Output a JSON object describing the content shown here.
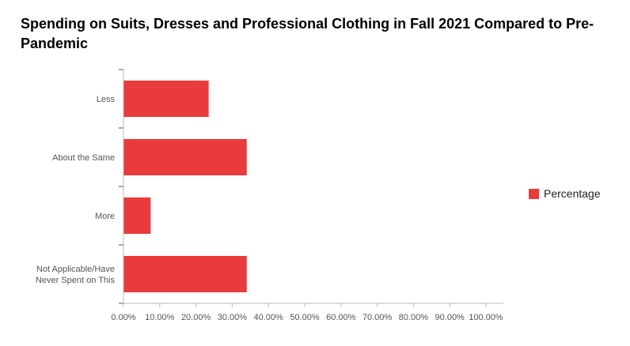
{
  "chart_data": {
    "type": "bar",
    "orientation": "horizontal",
    "title": "Spending on Suits, Dresses and Professional Clothing in Fall 2021 Compared to Pre-Pandemic",
    "categories": [
      "Less",
      "About the Same",
      "More",
      "Not Applicable/Have Never Spent on This"
    ],
    "category_lines": [
      [
        "Less"
      ],
      [
        "About the Same"
      ],
      [
        "More"
      ],
      [
        "Not Applicable/Have",
        "Never Spent on This"
      ]
    ],
    "series": [
      {
        "name": "Percentage",
        "values": [
          23.5,
          34.0,
          7.5,
          34.0
        ]
      }
    ],
    "xlim": [
      0,
      100
    ],
    "x_ticks": [
      0,
      10,
      20,
      30,
      40,
      50,
      60,
      70,
      80,
      90,
      100
    ],
    "x_tick_labels": [
      "0.00%",
      "10.00%",
      "20.00%",
      "30.00%",
      "40.00%",
      "50.00%",
      "60.00%",
      "70.00%",
      "80.00%",
      "90.00%",
      "100.00%"
    ],
    "legend_position": "right",
    "grid": false,
    "colors": {
      "bar": "#e93a3c",
      "axis": "#bbbbbb",
      "text": "#555555"
    }
  }
}
